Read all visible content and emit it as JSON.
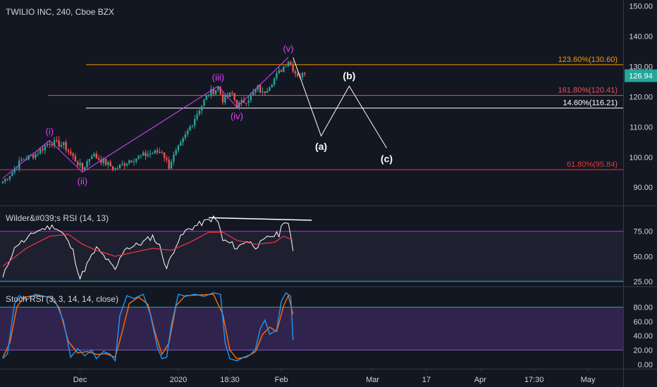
{
  "header": {
    "symbol_title": "TWILIO INC, 240, Cboe BZX"
  },
  "colors": {
    "background": "#131722",
    "grid": "#363a45",
    "text": "#d1d4dc",
    "bull": "#26a69a",
    "bear": "#ef5350",
    "wave_labels": "#e040fb",
    "projection": "#ffffff",
    "fib_123": "#ff9800",
    "fib_161": "#ef5350",
    "fib_14": "#ffffff",
    "fib_61": "#e53935",
    "rsi_line": "#ffffff",
    "rsi_ma": "#f23645",
    "rsi_upper": "#9c27b0",
    "rsi_lower": "#26c6da",
    "stoch_k": "#2196f3",
    "stoch_d": "#ff6d00",
    "stoch_band": "#7e57c2",
    "price_badge": "#26a69a"
  },
  "chart_data": [
    {
      "type": "candlestick",
      "pane": "price",
      "title": "TWILIO INC, 240, Cboe BZX",
      "ylim": [
        84,
        152
      ],
      "y_ticks": [
        90,
        100,
        110,
        120,
        130,
        140,
        150
      ],
      "y_tick_labels": [
        "90.00",
        "100.00",
        "110.00",
        "120.00",
        "130.00",
        "140.00",
        "150.00"
      ],
      "last_price": 126.94,
      "last_price_label": "126.94",
      "candle_count": 130,
      "close_anchors": [
        [
          0,
          92
        ],
        [
          4,
          95
        ],
        [
          8,
          99
        ],
        [
          14,
          101
        ],
        [
          20,
          105
        ],
        [
          26,
          104
        ],
        [
          32,
          98
        ],
        [
          34,
          96
        ],
        [
          38,
          101
        ],
        [
          44,
          98
        ],
        [
          48,
          96
        ],
        [
          54,
          99
        ],
        [
          62,
          101
        ],
        [
          68,
          102
        ],
        [
          71,
          97
        ],
        [
          72,
          99
        ],
        [
          76,
          104
        ],
        [
          80,
          110
        ],
        [
          84,
          116
        ],
        [
          88,
          121
        ],
        [
          90,
          122
        ],
        [
          92,
          123
        ],
        [
          94,
          119
        ],
        [
          98,
          121
        ],
        [
          100,
          117
        ],
        [
          102,
          118
        ],
        [
          106,
          120
        ],
        [
          109,
          123
        ],
        [
          111,
          121
        ],
        [
          114,
          124
        ],
        [
          118,
          128
        ],
        [
          120,
          130
        ],
        [
          122,
          132
        ],
        [
          125,
          128
        ],
        [
          127,
          126.94
        ]
      ],
      "fib_levels": [
        {
          "label": "123.60%(130.60)",
          "value": 130.6
        },
        {
          "label": "161.80%(120.41)",
          "value": 120.41
        },
        {
          "label": "14.60%(116.21)",
          "value": 116.21
        },
        {
          "label": "61.80%(95.84)",
          "value": 95.84
        }
      ],
      "wave_labels": [
        {
          "label": "(i)",
          "index": 20,
          "price": 105.5,
          "pos": "above"
        },
        {
          "label": "(ii)",
          "index": 34,
          "price": 95,
          "pos": "below"
        },
        {
          "label": "(iii)",
          "index": 92,
          "price": 123.5,
          "pos": "above"
        },
        {
          "label": "(iv)",
          "index": 100,
          "price": 116.5,
          "pos": "below"
        },
        {
          "label": "(v)",
          "index": 122,
          "price": 133,
          "pos": "above"
        }
      ],
      "wave_path": [
        [
          0,
          93
        ],
        [
          20,
          105.5
        ],
        [
          34,
          95
        ],
        [
          92,
          123.5
        ],
        [
          100,
          116.5
        ],
        [
          122,
          133
        ]
      ],
      "projection": {
        "labels": [
          "(a)",
          "(b)",
          "(c)"
        ],
        "points": [
          [
            124,
            133
          ],
          [
            136,
            107
          ],
          [
            148,
            123.5
          ],
          [
            164,
            103
          ]
        ]
      },
      "x_tick_labels": [
        "Dec",
        "2020",
        "18:30",
        "Feb",
        "Mar",
        "17",
        "Apr",
        "17:30",
        "May"
      ],
      "x_tick_index": [
        33,
        75,
        97,
        119,
        158,
        181,
        204,
        227,
        250
      ]
    },
    {
      "type": "line",
      "pane": "rsi",
      "title": "Wilder&#039;s RSI (14, 13)",
      "ylim": [
        20,
        100
      ],
      "y_ticks": [
        25,
        50,
        75
      ],
      "y_tick_labels": [
        "25.00",
        "50.00",
        "75.00"
      ],
      "bands": [
        75,
        25
      ],
      "rsi_anchors": [
        [
          0,
          28
        ],
        [
          3,
          48
        ],
        [
          6,
          62
        ],
        [
          10,
          66
        ],
        [
          14,
          75
        ],
        [
          18,
          78
        ],
        [
          22,
          80
        ],
        [
          26,
          72
        ],
        [
          30,
          55
        ],
        [
          33,
          28
        ],
        [
          36,
          42
        ],
        [
          40,
          58
        ],
        [
          44,
          48
        ],
        [
          48,
          36
        ],
        [
          52,
          58
        ],
        [
          56,
          60
        ],
        [
          60,
          64
        ],
        [
          64,
          70
        ],
        [
          67,
          60
        ],
        [
          70,
          38
        ],
        [
          74,
          62
        ],
        [
          78,
          75
        ],
        [
          82,
          80
        ],
        [
          86,
          84
        ],
        [
          90,
          88
        ],
        [
          92,
          84
        ],
        [
          94,
          66
        ],
        [
          98,
          62
        ],
        [
          100,
          58
        ],
        [
          104,
          66
        ],
        [
          108,
          60
        ],
        [
          111,
          64
        ],
        [
          114,
          70
        ],
        [
          118,
          72
        ],
        [
          120,
          86
        ],
        [
          122,
          82
        ],
        [
          124,
          54
        ]
      ],
      "ma_anchors": [
        [
          0,
          40
        ],
        [
          10,
          58
        ],
        [
          20,
          70
        ],
        [
          28,
          72
        ],
        [
          34,
          62
        ],
        [
          40,
          56
        ],
        [
          48,
          50
        ],
        [
          56,
          54
        ],
        [
          64,
          58
        ],
        [
          72,
          56
        ],
        [
          80,
          64
        ],
        [
          88,
          74
        ],
        [
          94,
          74
        ],
        [
          100,
          66
        ],
        [
          108,
          62
        ],
        [
          116,
          64
        ],
        [
          120,
          70
        ],
        [
          124,
          66
        ]
      ],
      "divergence_line": [
        [
          88,
          88.5
        ],
        [
          132,
          86
        ]
      ]
    },
    {
      "type": "line",
      "pane": "stoch",
      "title": "Stoch RSI (3, 3, 14, 14, close)",
      "ylim": [
        -6,
        108
      ],
      "y_ticks": [
        0,
        20,
        40,
        60,
        80
      ],
      "y_tick_labels": [
        "0.00",
        "20.00",
        "40.00",
        "60.00",
        "80.00"
      ],
      "bands": [
        80,
        20
      ],
      "k_anchors": [
        [
          0,
          8
        ],
        [
          2,
          15
        ],
        [
          5,
          85
        ],
        [
          7,
          96
        ],
        [
          10,
          90
        ],
        [
          14,
          98
        ],
        [
          18,
          95
        ],
        [
          22,
          92
        ],
        [
          26,
          60
        ],
        [
          29,
          10
        ],
        [
          32,
          22
        ],
        [
          35,
          12
        ],
        [
          38,
          20
        ],
        [
          40,
          8
        ],
        [
          43,
          18
        ],
        [
          46,
          14
        ],
        [
          48,
          5
        ],
        [
          50,
          68
        ],
        [
          53,
          96
        ],
        [
          56,
          92
        ],
        [
          60,
          98
        ],
        [
          63,
          70
        ],
        [
          66,
          25
        ],
        [
          68,
          8
        ],
        [
          70,
          10
        ],
        [
          72,
          55
        ],
        [
          75,
          98
        ],
        [
          78,
          95
        ],
        [
          82,
          98
        ],
        [
          86,
          95
        ],
        [
          90,
          100
        ],
        [
          93,
          98
        ],
        [
          95,
          30
        ],
        [
          97,
          8
        ],
        [
          100,
          5
        ],
        [
          103,
          10
        ],
        [
          106,
          14
        ],
        [
          108,
          22
        ],
        [
          110,
          50
        ],
        [
          112,
          62
        ],
        [
          114,
          42
        ],
        [
          117,
          48
        ],
        [
          119,
          88
        ],
        [
          121,
          100
        ],
        [
          123,
          95
        ],
        [
          124,
          34
        ]
      ],
      "d_anchors": [
        [
          0,
          10
        ],
        [
          3,
          30
        ],
        [
          6,
          80
        ],
        [
          9,
          94
        ],
        [
          14,
          96
        ],
        [
          20,
          94
        ],
        [
          24,
          80
        ],
        [
          28,
          32
        ],
        [
          32,
          16
        ],
        [
          36,
          18
        ],
        [
          40,
          14
        ],
        [
          44,
          15
        ],
        [
          48,
          10
        ],
        [
          51,
          45
        ],
        [
          54,
          85
        ],
        [
          58,
          94
        ],
        [
          62,
          84
        ],
        [
          65,
          45
        ],
        [
          68,
          14
        ],
        [
          71,
          30
        ],
        [
          74,
          82
        ],
        [
          78,
          96
        ],
        [
          84,
          97
        ],
        [
          90,
          98
        ],
        [
          94,
          70
        ],
        [
          97,
          20
        ],
        [
          100,
          8
        ],
        [
          104,
          10
        ],
        [
          108,
          18
        ],
        [
          111,
          42
        ],
        [
          114,
          52
        ],
        [
          117,
          46
        ],
        [
          120,
          82
        ],
        [
          122,
          96
        ],
        [
          124,
          70
        ]
      ]
    }
  ]
}
